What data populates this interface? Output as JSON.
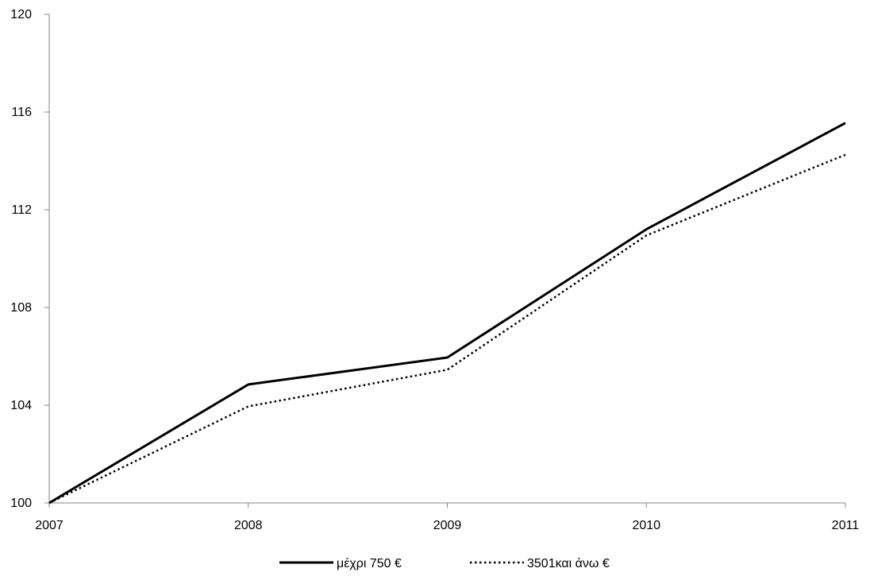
{
  "chart_data": {
    "type": "line",
    "title": "",
    "xlabel": "",
    "ylabel": "",
    "x": [
      "2007",
      "2008",
      "2009",
      "2010",
      "2011"
    ],
    "ylim": [
      100,
      120
    ],
    "yticks": [
      "100",
      "104",
      "108",
      "112",
      "116",
      "120"
    ],
    "grid": false,
    "legend_position": "bottom",
    "series": [
      {
        "name": "μέχρι 750 €",
        "values": [
          100,
          104.85,
          105.95,
          111.2,
          115.55
        ],
        "style": "solid",
        "color": "#000000"
      },
      {
        "name": "3501και άνω €",
        "values": [
          100,
          103.95,
          105.45,
          110.95,
          114.25
        ],
        "style": "dotted",
        "color": "#000000"
      }
    ]
  }
}
